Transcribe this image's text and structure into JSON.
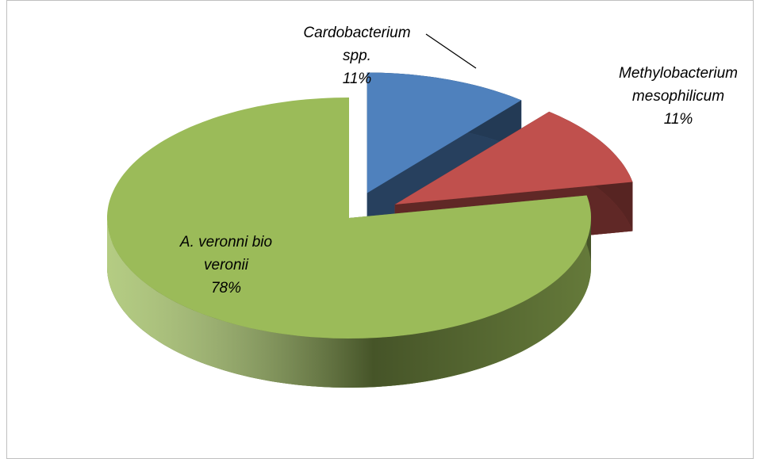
{
  "chart_data": {
    "type": "pie3d",
    "categories": [
      "Cardobacterium spp.",
      "Methylobacterium mesophilicum",
      "A. veronni bio veronii"
    ],
    "values": [
      11,
      11,
      78
    ],
    "value_labels": [
      "11%",
      "11%",
      "78%"
    ],
    "colors": [
      "#4f81bd",
      "#c0504d",
      "#9bbb59"
    ]
  }
}
